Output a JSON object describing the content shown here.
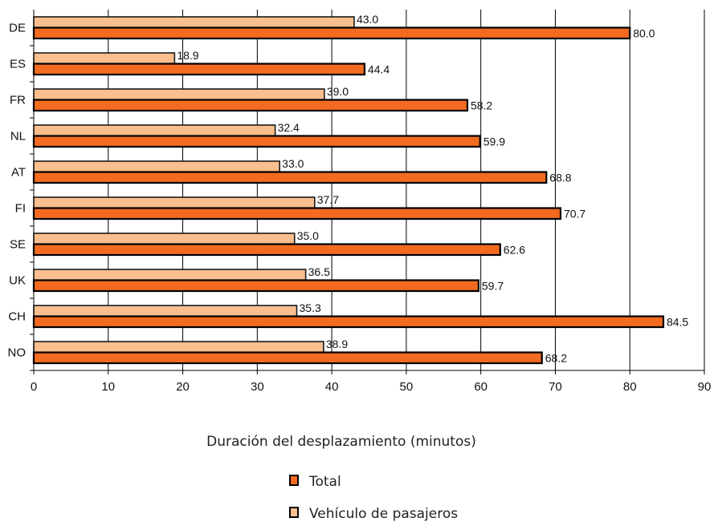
{
  "chart_data": {
    "type": "bar",
    "orientation": "horizontal",
    "categories": [
      "DE",
      "ES",
      "FR",
      "NL",
      "AT",
      "FI",
      "SE",
      "UK",
      "CH",
      "NO"
    ],
    "series": [
      {
        "name": "Vehículo de pasajeros",
        "values": [
          43.0,
          18.9,
          39.0,
          32.4,
          33.0,
          37.7,
          35.0,
          36.5,
          35.3,
          38.9
        ],
        "color": "#fbbf8f"
      },
      {
        "name": "Total",
        "values": [
          80.0,
          44.4,
          58.2,
          59.9,
          68.8,
          70.7,
          62.6,
          59.7,
          84.5,
          68.2
        ],
        "color": "#f26b21"
      }
    ],
    "data_labels": {
      "passenger": [
        "43.0",
        "18.9",
        "39.0",
        "32.4",
        "33.0",
        "37.7",
        "35.0",
        "36.5",
        "35.3",
        "38.9"
      ],
      "total": [
        "80.0",
        "44.4",
        "58.2",
        "59.9",
        "68.8",
        "70.7",
        "62.6",
        "59.7",
        "84.5",
        "68.2"
      ]
    },
    "title": "",
    "xlabel": "Duración del desplazamiento (minutos)",
    "ylabel": "",
    "xlim": [
      0,
      90
    ],
    "xticks": [
      "0",
      "10",
      "20",
      "30",
      "40",
      "50",
      "60",
      "70",
      "80",
      "90"
    ],
    "grid": "vertical",
    "legend": {
      "placement": "bottom",
      "entries": [
        "Total",
        "Vehículo de pasajeros"
      ]
    }
  }
}
